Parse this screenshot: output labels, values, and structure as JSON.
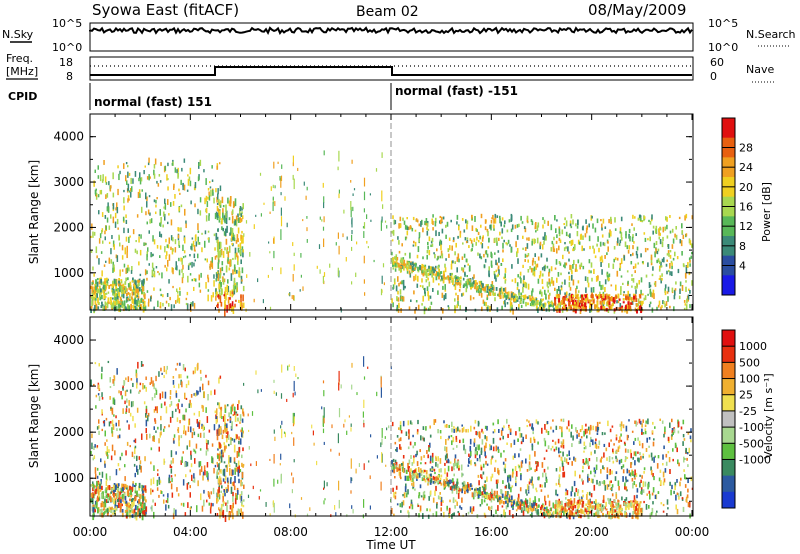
{
  "header": {
    "station": "Syowa East (fitACF)",
    "beam": "Beam 02",
    "date": "08/May/2009"
  },
  "status_panels": {
    "nsky_label": "N.Sky",
    "nsky_ticks": [
      "10^5",
      "10^0"
    ],
    "nsearch_label": "N.Search",
    "nsearch_ticks": [
      "10^5",
      "10^0"
    ],
    "freq_label_line1": "Freq.",
    "freq_label_line2": "[MHz]",
    "freq_ticks": [
      "18",
      "8"
    ],
    "nave_label": "Nave",
    "nave_ticks": [
      "60",
      "0"
    ],
    "cpid_label": "CPID",
    "cpid_segments": [
      {
        "label": "normal (fast) 151",
        "start_hour": 0
      },
      {
        "label": "normal (fast) -151",
        "start_hour": 12
      }
    ]
  },
  "chart_data": [
    {
      "type": "heatmap",
      "name": "power",
      "ylabel": "Slant Range [km]",
      "ylim": [
        180,
        4500
      ],
      "y_ticks": [
        "1000",
        "2000",
        "3000",
        "4000"
      ],
      "xlim_hours": [
        0,
        24
      ],
      "colorbar": {
        "label": "Power [dB]",
        "ticks": [
          "28",
          "24",
          "20",
          "16",
          "12",
          "8",
          "4"
        ],
        "colors": [
          "#1a1ae6",
          "#2a4da0",
          "#3b8a78",
          "#58b858",
          "#a8d850",
          "#f0d020",
          "#f0a020",
          "#e86010",
          "#e01010"
        ]
      }
    },
    {
      "type": "heatmap",
      "name": "velocity",
      "ylabel": "Slant Range [km]",
      "ylim": [
        180,
        4500
      ],
      "y_ticks": [
        "1000",
        "2000",
        "3000",
        "4000"
      ],
      "xlim_hours": [
        0,
        24
      ],
      "xlabel": "Time UT",
      "x_ticks": [
        "00:00",
        "04:00",
        "08:00",
        "12:00",
        "16:00",
        "20:00",
        "00:00"
      ],
      "colorbar": {
        "label": "Velocity [m s⁻¹]",
        "ticks": [
          "1000",
          "500",
          "100",
          "25",
          "-25",
          "-100",
          "-500",
          "-1000"
        ],
        "colors": [
          "#1a3ad0",
          "#2c5aa0",
          "#3a8a60",
          "#5ec040",
          "#a8d890",
          "#c0c0c0",
          "#f0e050",
          "#f0b030",
          "#f08020",
          "#e83010",
          "#e01010"
        ]
      }
    }
  ]
}
